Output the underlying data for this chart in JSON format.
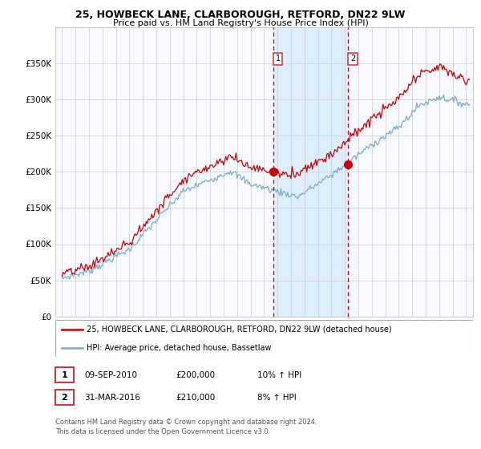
{
  "title": "25, HOWBECK LANE, CLARBOROUGH, RETFORD, DN22 9LW",
  "subtitle": "Price paid vs. HM Land Registry's House Price Index (HPI)",
  "legend_line1": "25, HOWBECK LANE, CLARBOROUGH, RETFORD, DN22 9LW (detached house)",
  "legend_line2": "HPI: Average price, detached house, Bassetlaw",
  "footnote1": "Contains HM Land Registry data © Crown copyright and database right 2024.",
  "footnote2": "This data is licensed under the Open Government Licence v3.0.",
  "table_rows": [
    {
      "num": "1",
      "date": "09-SEP-2010",
      "price": "£200,000",
      "hpi": "10% ↑ HPI"
    },
    {
      "num": "2",
      "date": "31-MAR-2016",
      "price": "£210,000",
      "hpi": "8% ↑ HPI"
    }
  ],
  "point1_x": 2010.69,
  "point1_y": 200000,
  "point2_x": 2016.25,
  "point2_y": 210000,
  "shade_x1": 2010.69,
  "shade_x2": 2016.25,
  "vline1_x": 2010.69,
  "vline2_x": 2016.25,
  "xlim": [
    1994.5,
    2025.5
  ],
  "ylim": [
    0,
    400000
  ],
  "yticks": [
    0,
    50000,
    100000,
    150000,
    200000,
    250000,
    300000,
    350000
  ],
  "ytick_labels": [
    "£0",
    "£50K",
    "£100K",
    "£150K",
    "£200K",
    "£250K",
    "£300K",
    "£350K"
  ],
  "red_color": "#cc0000",
  "blue_color": "#7aadcc",
  "shade_color": "#ddeeff",
  "bg_color": "#f8f8ff",
  "grid_color": "#cccccc"
}
